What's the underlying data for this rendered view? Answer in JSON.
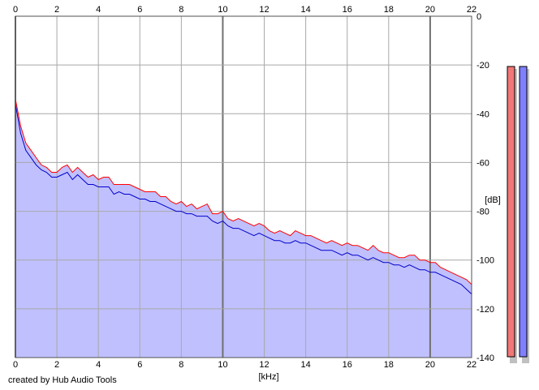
{
  "credit": "created by Hub Audio Tools",
  "chart_data": {
    "type": "area",
    "xlabel": "[kHz]",
    "ylabel": "[dB]",
    "xlim": [
      0,
      22
    ],
    "ylim": [
      -140,
      0
    ],
    "x_ticks": [
      0,
      2,
      4,
      6,
      8,
      10,
      12,
      14,
      16,
      18,
      20,
      22
    ],
    "y_ticks": [
      0,
      -20,
      -40,
      -60,
      -80,
      -100,
      -120,
      -140
    ],
    "grid": true,
    "background": "#ffffff",
    "fill_color": "#c0c0ff",
    "series": [
      {
        "color": "#ff0000",
        "x": [
          0.0,
          0.25,
          0.5,
          0.75,
          1.0,
          1.25,
          1.5,
          1.75,
          2.0,
          2.25,
          2.5,
          2.75,
          3.0,
          3.25,
          3.5,
          3.75,
          4.0,
          4.25,
          4.5,
          4.75,
          5.0,
          5.25,
          5.5,
          5.75,
          6.0,
          6.25,
          6.5,
          6.75,
          7.0,
          7.25,
          7.5,
          7.75,
          8.0,
          8.25,
          8.5,
          8.75,
          9.0,
          9.25,
          9.5,
          9.75,
          10.0,
          10.25,
          10.5,
          10.75,
          11.0,
          11.25,
          11.5,
          11.75,
          12.0,
          12.25,
          12.5,
          12.75,
          13.0,
          13.25,
          13.5,
          13.75,
          14.0,
          14.25,
          14.5,
          14.75,
          15.0,
          15.25,
          15.5,
          15.75,
          16.0,
          16.25,
          16.5,
          16.75,
          17.0,
          17.25,
          17.5,
          17.75,
          18.0,
          18.25,
          18.5,
          18.75,
          19.0,
          19.25,
          19.5,
          19.75,
          20.0,
          20.25,
          20.5,
          20.75,
          21.0,
          21.25,
          21.5,
          21.75,
          22.0
        ],
        "values": [
          -34,
          -45,
          -52,
          -55,
          -58,
          -61,
          -62,
          -64,
          -64,
          -62,
          -61,
          -64,
          -62,
          -64,
          -66,
          -65,
          -67,
          -66,
          -66,
          -69,
          -69,
          -69,
          -69,
          -70,
          -71,
          -72,
          -72,
          -72,
          -74,
          -74,
          -76,
          -77,
          -76,
          -78,
          -77,
          -79,
          -78,
          -77,
          -81,
          -81,
          -80,
          -83,
          -84,
          -83,
          -84,
          -85,
          -86,
          -85,
          -86,
          -88,
          -89,
          -88,
          -89,
          -90,
          -88,
          -89,
          -90,
          -90,
          -91,
          -92,
          -93,
          -92,
          -93,
          -94,
          -93,
          -94,
          -94,
          -95,
          -96,
          -94,
          -96,
          -97,
          -97,
          -98,
          -99,
          -99,
          -98,
          -98,
          -100,
          -100,
          -101,
          -101,
          -103,
          -104,
          -105,
          -106,
          -107,
          -108,
          -110
        ]
      },
      {
        "color": "#0000c8",
        "x": [
          0.0,
          0.25,
          0.5,
          0.75,
          1.0,
          1.25,
          1.5,
          1.75,
          2.0,
          2.25,
          2.5,
          2.75,
          3.0,
          3.25,
          3.5,
          3.75,
          4.0,
          4.25,
          4.5,
          4.75,
          5.0,
          5.25,
          5.5,
          5.75,
          6.0,
          6.25,
          6.5,
          6.75,
          7.0,
          7.25,
          7.5,
          7.75,
          8.0,
          8.25,
          8.5,
          8.75,
          9.0,
          9.25,
          9.5,
          9.75,
          10.0,
          10.25,
          10.5,
          10.75,
          11.0,
          11.25,
          11.5,
          11.75,
          12.0,
          12.25,
          12.5,
          12.75,
          13.0,
          13.25,
          13.5,
          13.75,
          14.0,
          14.25,
          14.5,
          14.75,
          15.0,
          15.25,
          15.5,
          15.75,
          16.0,
          16.25,
          16.5,
          16.75,
          17.0,
          17.25,
          17.5,
          17.75,
          18.0,
          18.25,
          18.5,
          18.75,
          19.0,
          19.25,
          19.5,
          19.75,
          20.0,
          20.25,
          20.5,
          20.75,
          21.0,
          21.25,
          21.5,
          21.75,
          22.0
        ],
        "values": [
          -36,
          -48,
          -55,
          -58,
          -61,
          -63,
          -64,
          -66,
          -66,
          -65,
          -64,
          -67,
          -65,
          -67,
          -69,
          -69,
          -70,
          -70,
          -70,
          -73,
          -72,
          -73,
          -73,
          -74,
          -75,
          -75,
          -76,
          -76,
          -77,
          -78,
          -79,
          -80,
          -80,
          -81,
          -81,
          -82,
          -82,
          -82,
          -84,
          -85,
          -84,
          -86,
          -87,
          -87,
          -88,
          -89,
          -90,
          -89,
          -90,
          -91,
          -92,
          -92,
          -93,
          -93,
          -92,
          -93,
          -93,
          -94,
          -95,
          -96,
          -96,
          -96,
          -97,
          -98,
          -97,
          -98,
          -98,
          -99,
          -100,
          -99,
          -100,
          -101,
          -101,
          -102,
          -102,
          -103,
          -102,
          -103,
          -104,
          -104,
          -105,
          -105,
          -106,
          -107,
          -108,
          -109,
          -110,
          -112,
          -114
        ]
      }
    ]
  },
  "channel_meters": [
    {
      "color": "#f07878"
    },
    {
      "color": "#8080ff"
    }
  ]
}
